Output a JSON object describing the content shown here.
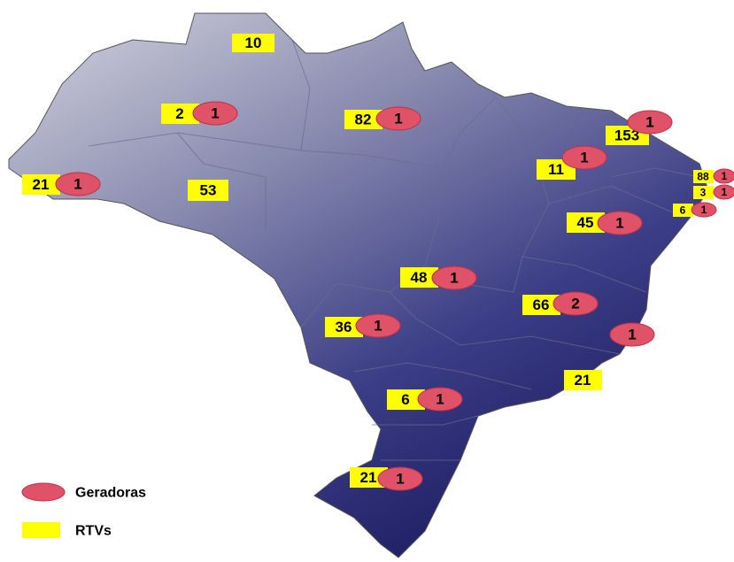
{
  "markers": [
    {
      "rtvs": 10
    },
    {
      "rtvs": 2,
      "geradoras": 1
    },
    {
      "rtvs": 82,
      "geradoras": 1
    },
    {
      "rtvs": 153,
      "geradoras": 1
    },
    {
      "rtvs": 11,
      "geradoras": 1
    },
    {
      "rtvs": 21,
      "geradoras": 1
    },
    {
      "rtvs": 53
    },
    {
      "rtvs": 88,
      "geradoras": 1
    },
    {
      "rtvs": 3,
      "geradoras": 1
    },
    {
      "rtvs": 6,
      "geradoras": 1
    },
    {
      "rtvs": 45,
      "geradoras": 1
    },
    {
      "rtvs": 48,
      "geradoras": 1
    },
    {
      "rtvs": 66,
      "geradoras": 2
    },
    {
      "rtvs": 36,
      "geradoras": 1
    },
    {
      "geradoras": 1
    },
    {
      "rtvs": 21
    },
    {
      "rtvs": 6,
      "geradoras": 1
    },
    {
      "rtvs": 21,
      "geradoras": 1
    }
  ],
  "legend": {
    "geradoras": "Geradoras",
    "rtvs": "RTVs"
  }
}
